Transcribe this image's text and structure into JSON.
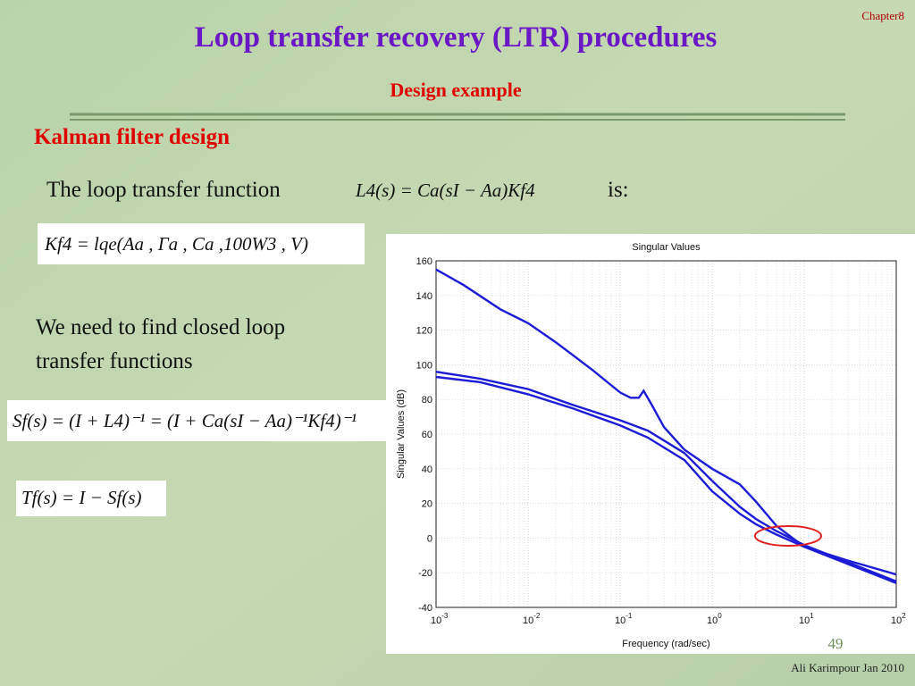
{
  "header": {
    "chapter": "Chapter8",
    "title": "Loop transfer recovery (LTR) procedures",
    "subtitle": "Design example"
  },
  "section": "Kalman filter design",
  "loop_text": {
    "before": "The loop transfer function",
    "formula": "L4(s) = Ca(sI − Aa)Kf4",
    "after": "is:"
  },
  "gain_formula": "Kf4 = lqe(Aa , Γa , Ca ,100W3 , V)",
  "paragraph": [
    "We need to find closed loop",
    "transfer functions"
  ],
  "sensitivity_formula": "Sf(s) = (I + L4)⁻¹ = (I + Ca(sI − Aa)⁻¹Kf4)⁻¹",
  "complementary_formula": "Tf(s) = I − Sf(s)",
  "page_number": "49",
  "footer": "Ali Karimpour  Jan 2010",
  "chart_data": {
    "type": "line",
    "title": "Singular Values",
    "x_label": "Frequency (rad/sec)",
    "y_label": "Singular Values (dB)",
    "x_scale": "log",
    "grid": true,
    "minor_grid": true,
    "xlim": [
      0.001,
      100
    ],
    "ylim": [
      -40,
      160
    ],
    "xticks": [
      {
        "value": 0.001,
        "label": "10",
        "exponent": "-3"
      },
      {
        "value": 0.01,
        "label": "10",
        "exponent": "-2"
      },
      {
        "value": 0.1,
        "label": "10",
        "exponent": "-1"
      },
      {
        "value": 1,
        "label": "10",
        "exponent": "0"
      },
      {
        "value": 10,
        "label": "10",
        "exponent": "1"
      },
      {
        "value": 100,
        "label": "10",
        "exponent": "2"
      }
    ],
    "yticks": [
      -40,
      -20,
      0,
      20,
      40,
      60,
      80,
      100,
      120,
      140,
      160
    ],
    "series": [
      {
        "color": "#1c1cd6",
        "x": [
          0.001,
          0.002,
          0.005,
          0.01,
          0.02,
          0.05,
          0.1,
          0.13,
          0.16,
          0.18,
          0.22,
          0.3,
          0.5,
          1,
          2,
          3,
          5,
          10,
          30,
          100
        ],
        "values": [
          155,
          146,
          132,
          124,
          113,
          97,
          84,
          81,
          81,
          85,
          77,
          64,
          51,
          40,
          31,
          21,
          7,
          -5,
          -13,
          -21
        ]
      },
      {
        "color": "#1c1cd6",
        "x": [
          0.001,
          0.003,
          0.01,
          0.03,
          0.1,
          0.2,
          0.5,
          1,
          2,
          3,
          5,
          10,
          30,
          100
        ],
        "values": [
          96,
          92,
          86,
          77,
          68,
          62,
          49,
          33,
          18,
          11,
          4,
          -4,
          -14,
          -25
        ]
      },
      {
        "color": "#1c1cd6",
        "x": [
          0.001,
          0.003,
          0.01,
          0.03,
          0.1,
          0.2,
          0.5,
          1,
          2,
          3,
          5,
          10,
          30,
          100
        ],
        "values": [
          93,
          90,
          83,
          75,
          65,
          58,
          45,
          27,
          14,
          8,
          2,
          -5,
          -15,
          -26
        ]
      }
    ]
  }
}
